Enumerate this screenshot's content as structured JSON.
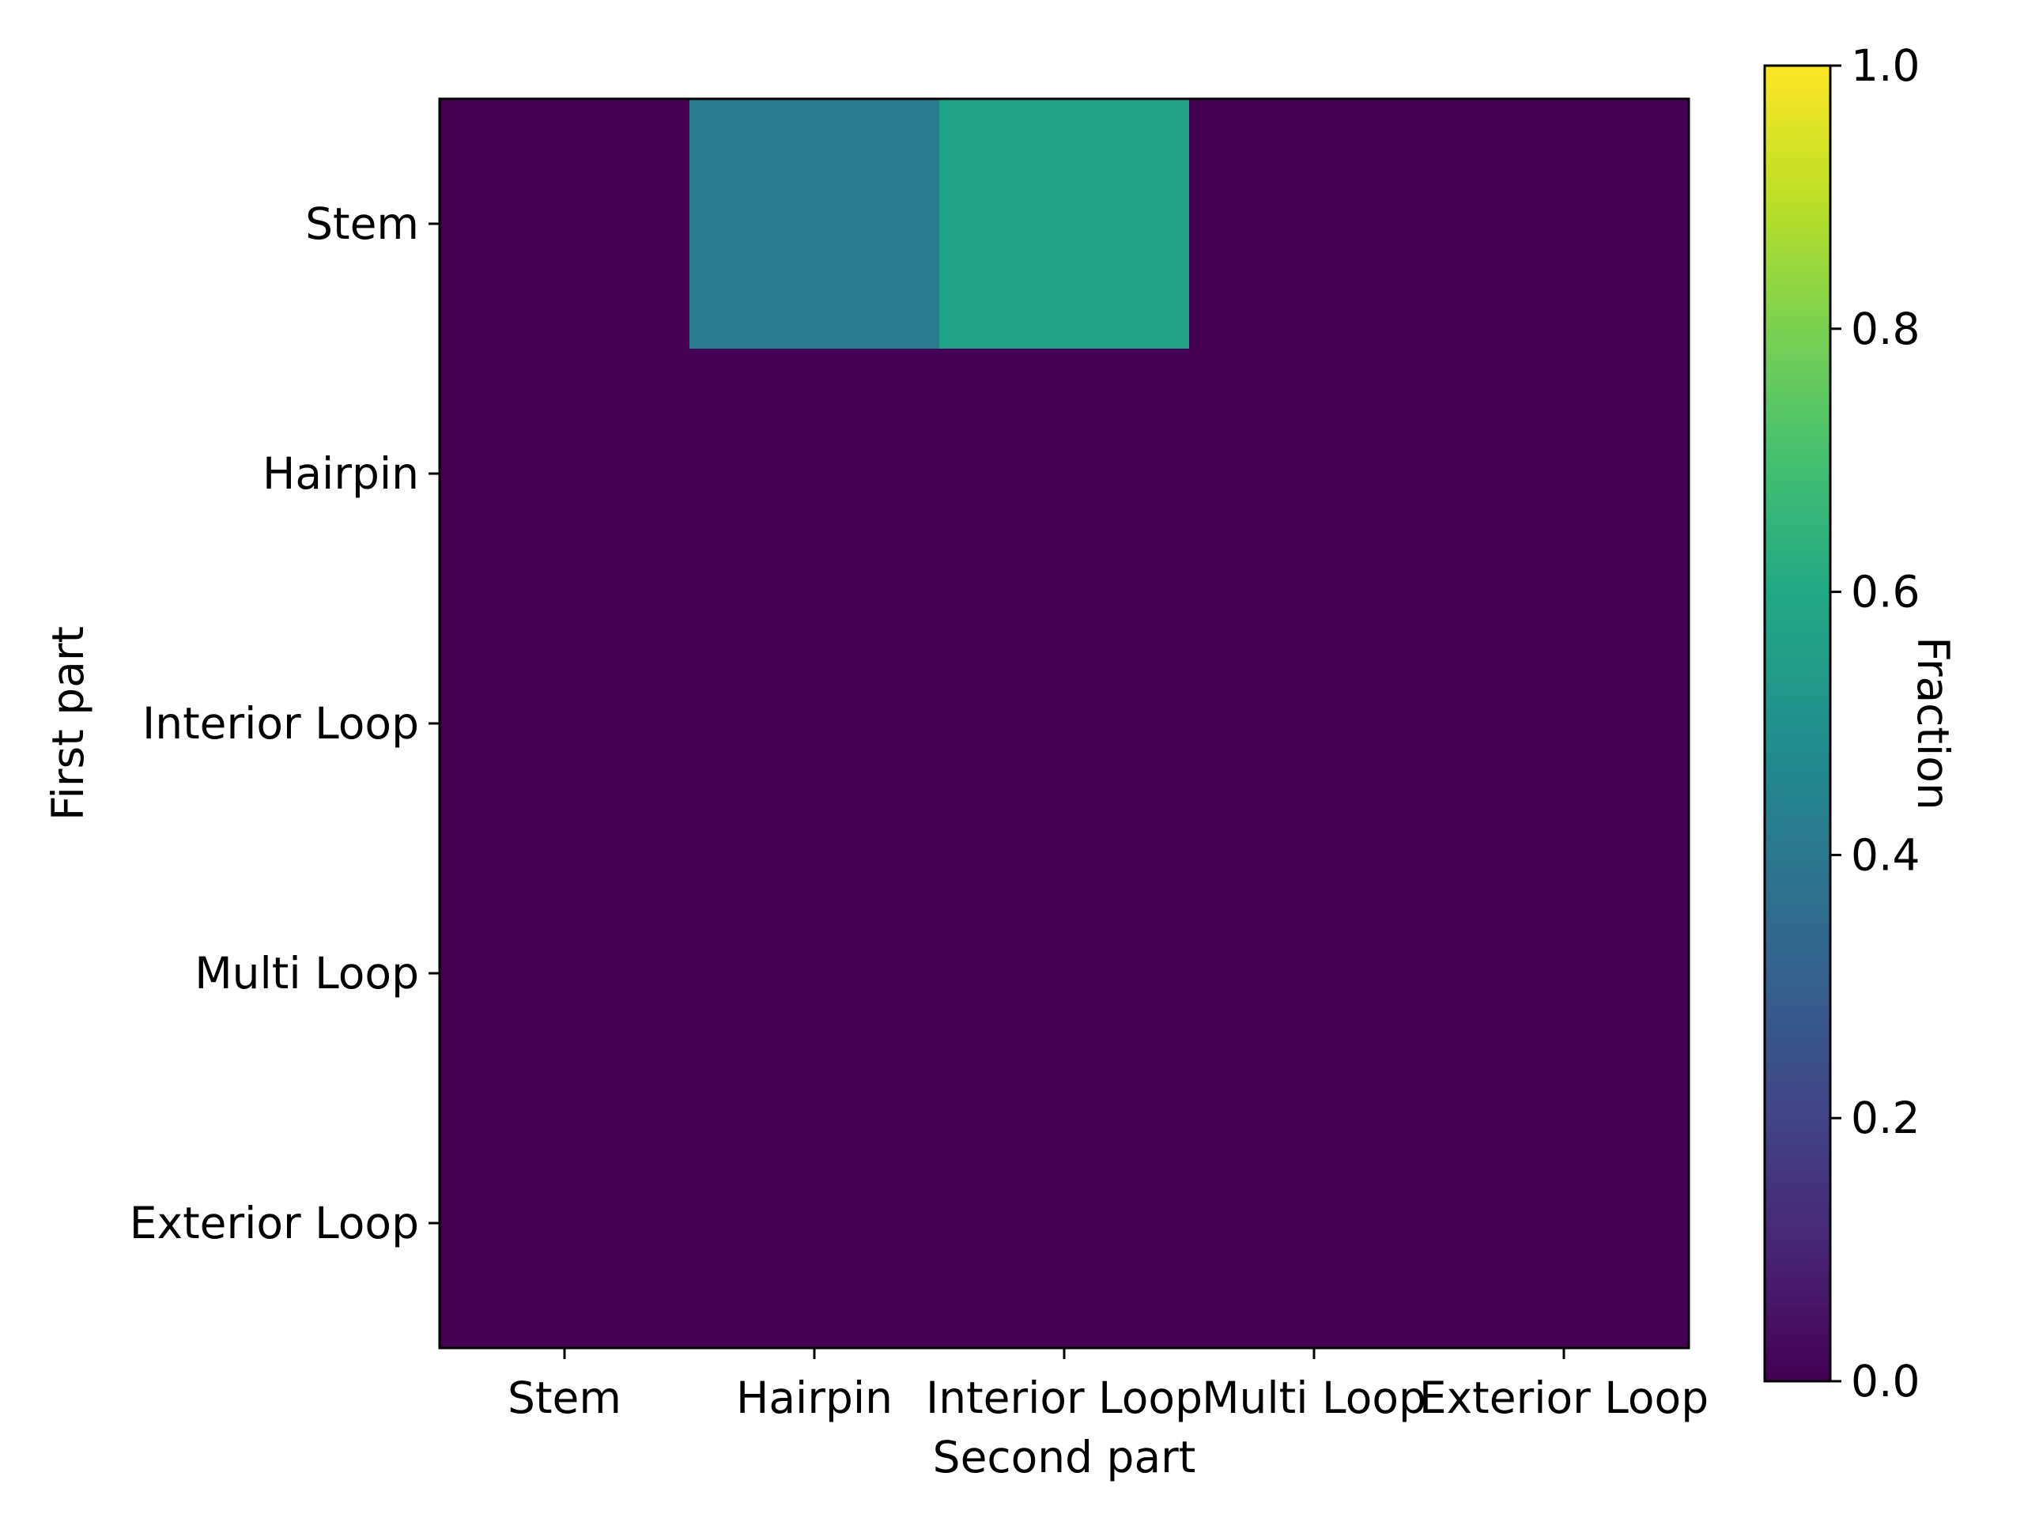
{
  "chart_data": {
    "type": "heatmap",
    "x_categories": [
      "Stem",
      "Hairpin",
      "Interior Loop",
      "Multi Loop",
      "Exterior Loop"
    ],
    "y_categories": [
      "Stem",
      "Hairpin",
      "Interior Loop",
      "Multi Loop",
      "Exterior Loop"
    ],
    "values": [
      [
        0.0,
        0.42,
        0.58,
        0.0,
        0.0
      ],
      [
        0.0,
        0.0,
        0.0,
        0.0,
        0.0
      ],
      [
        0.0,
        0.0,
        0.0,
        0.0,
        0.0
      ],
      [
        0.0,
        0.0,
        0.0,
        0.0,
        0.0
      ],
      [
        0.0,
        0.0,
        0.0,
        0.0,
        0.0
      ]
    ],
    "xlabel": "Second part",
    "ylabel": "First part",
    "colorbar": {
      "label": "Fraction",
      "range": [
        0.0,
        1.0
      ],
      "ticks": [
        "0.0",
        "0.2",
        "0.4",
        "0.6",
        "0.8",
        "1.0"
      ],
      "colormap": "viridis"
    },
    "grid": false
  }
}
